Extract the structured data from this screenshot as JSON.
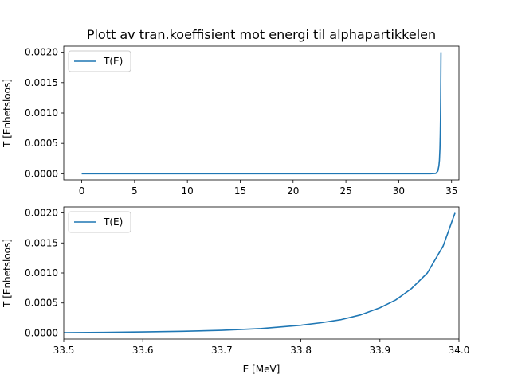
{
  "chart_data": [
    {
      "type": "line",
      "title": "Plott av tran.koeffisient mot energi til alphapartikkelen",
      "xlabel": "",
      "ylabel": "T [Enhetsloos]",
      "xlim": [
        -1.7,
        35.7
      ],
      "ylim": [
        -0.0001,
        0.0021
      ],
      "xticks": [
        "0",
        "5",
        "10",
        "15",
        "20",
        "25",
        "30",
        "35"
      ],
      "yticks": [
        "0.0000",
        "0.0005",
        "0.0010",
        "0.0015",
        "0.0020"
      ],
      "legend": "upper-left",
      "grid": false,
      "series": [
        {
          "name": "T(E)",
          "color": "#1f77b4",
          "x": [
            0,
            5,
            10,
            15,
            20,
            25,
            30,
            33.0,
            33.5,
            33.7,
            33.8,
            33.85,
            33.9,
            33.93,
            33.95,
            33.97,
            33.99,
            34.0
          ],
          "y": [
            0,
            0,
            0,
            0,
            0,
            0,
            0,
            5e-07,
            5e-06,
            4.5e-05,
            0.00013,
            0.00022,
            0.00042,
            0.00065,
            0.00088,
            0.00125,
            0.00175,
            0.002
          ]
        }
      ]
    },
    {
      "type": "line",
      "title": "",
      "xlabel": "E [MeV]",
      "ylabel": "T [Enhetsloos]",
      "xlim": [
        33.5,
        34.0
      ],
      "ylim": [
        -0.0001,
        0.0021
      ],
      "xticks": [
        "33.5",
        "33.6",
        "33.7",
        "33.8",
        "33.9",
        "34.0"
      ],
      "yticks": [
        "0.0000",
        "0.0005",
        "0.0010",
        "0.0015",
        "0.0020"
      ],
      "legend": "upper-left",
      "grid": false,
      "series": [
        {
          "name": "T(E)",
          "color": "#1f77b4",
          "x": [
            33.5,
            33.55,
            33.6,
            33.65,
            33.7,
            33.75,
            33.8,
            33.825,
            33.85,
            33.875,
            33.9,
            33.92,
            33.94,
            33.96,
            33.98,
            33.995
          ],
          "y": [
            5e-06,
            1.1e-05,
            1.8e-05,
            2.8e-05,
            4.5e-05,
            7.5e-05,
            0.00013,
            0.00017,
            0.00022,
            0.0003,
            0.00042,
            0.00055,
            0.00074,
            0.001,
            0.00145,
            0.002
          ]
        }
      ]
    }
  ]
}
